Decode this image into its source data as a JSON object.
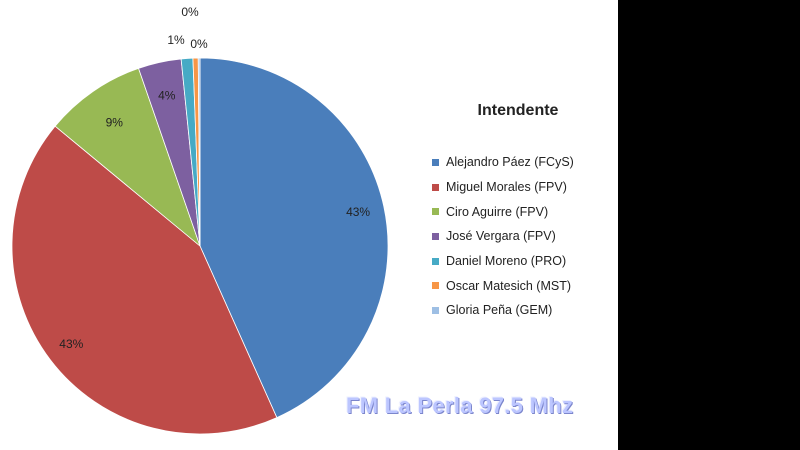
{
  "chart_data": {
    "type": "pie",
    "title": "",
    "legend_title": "Intendente",
    "legend_position": "right",
    "slices": [
      {
        "name": "Alejandro Páez (FCyS)",
        "value": 43.3,
        "label": "43%",
        "color": "#4a7ebb"
      },
      {
        "name": "Miguel Morales (FPV)",
        "value": 42.7,
        "label": "43%",
        "color": "#be4b48"
      },
      {
        "name": "Ciro Aguirre (FPV)",
        "value": 8.7,
        "label": "9%",
        "color": "#98b954"
      },
      {
        "name": "José Vergara (FPV)",
        "value": 3.7,
        "label": "4%",
        "color": "#7d60a0"
      },
      {
        "name": "Daniel Moreno (PRO)",
        "value": 1.0,
        "label": "1%",
        "color": "#46aac5"
      },
      {
        "name": "Oscar Matesich (MST)",
        "value": 0.45,
        "label": "0%",
        "color": "#f79646"
      },
      {
        "name": "Gloria Peña (GEM)",
        "value": 0.15,
        "label": "0%",
        "color": "#9ebfe4"
      }
    ]
  },
  "watermark": "FM La Perla 97.5 Mhz"
}
